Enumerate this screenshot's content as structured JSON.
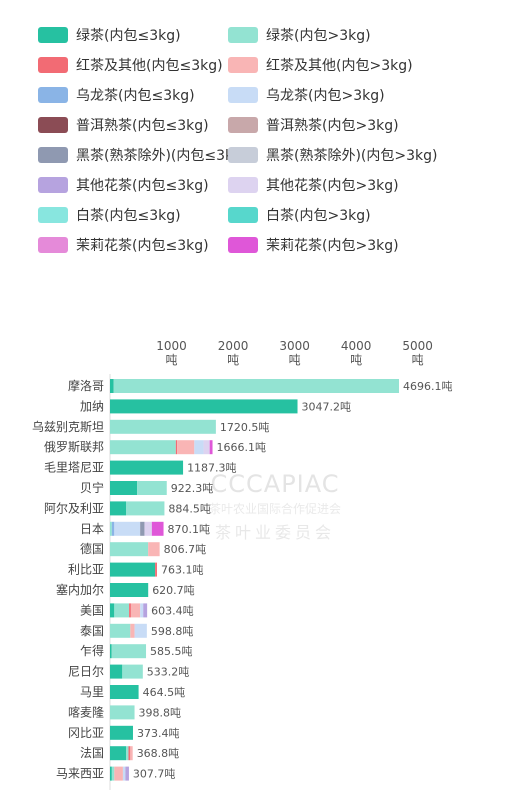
{
  "colors": {
    "green_small": "#26c1a1",
    "green_large": "#93e3d2",
    "red_small": "#f26b74",
    "red_large": "#f9b5b5",
    "oolong_small": "#8ab4e6",
    "oolong_large": "#c8dcf6",
    "puer_small": "#8b4c55",
    "puer_large": "#c8a8aa",
    "dark_small": "#8f99b1",
    "dark_large": "#c7cdd9",
    "flower_small": "#b6a3df",
    "flower_large": "#ddd3f0",
    "white_small": "#88e6df",
    "white_large": "#57d7cc",
    "jasmine_small": "#e58ad9",
    "jasmine_large": "#df57d8"
  },
  "legend": [
    {
      "label": "绿茶(内包≤3kg)",
      "color_key": "green_small"
    },
    {
      "label": "绿茶(内包>3kg)",
      "color_key": "green_large"
    },
    {
      "label": "红茶及其他(内包≤3kg)",
      "color_key": "red_small"
    },
    {
      "label": "红茶及其他(内包>3kg)",
      "color_key": "red_large"
    },
    {
      "label": "乌龙茶(内包≤3kg)",
      "color_key": "oolong_small"
    },
    {
      "label": "乌龙茶(内包>3kg)",
      "color_key": "oolong_large"
    },
    {
      "label": "普洱熟茶(内包≤3kg)",
      "color_key": "puer_small"
    },
    {
      "label": "普洱熟茶(内包>3kg)",
      "color_key": "puer_large"
    },
    {
      "label": "黑茶(熟茶除外)(内包≤3kg)",
      "color_key": "dark_small"
    },
    {
      "label": "黑茶(熟茶除外)(内包>3kg)",
      "color_key": "dark_large"
    },
    {
      "label": "其他花茶(内包≤3kg)",
      "color_key": "flower_small"
    },
    {
      "label": "其他花茶(内包>3kg)",
      "color_key": "flower_large"
    },
    {
      "label": "白茶(内包≤3kg)",
      "color_key": "white_small"
    },
    {
      "label": "白茶(内包>3kg)",
      "color_key": "white_large"
    },
    {
      "label": "茉莉花茶(内包≤3kg)",
      "color_key": "jasmine_small"
    },
    {
      "label": "茉莉花茶(内包>3kg)",
      "color_key": "jasmine_large"
    }
  ],
  "watermark": {
    "en": "CCCAPIAC",
    "cn": "茶叶农业国际合作促进会",
    "cn2": "茶叶业委员会"
  },
  "chart_data": {
    "type": "bar",
    "orientation": "horizontal",
    "stacked": true,
    "unit": "吨",
    "xlim": [
      0,
      5200
    ],
    "ticks": [
      {
        "value": 1000,
        "num": "1000",
        "unit": "吨"
      },
      {
        "value": 2000,
        "num": "2000",
        "unit": "吨"
      },
      {
        "value": 3000,
        "num": "3000",
        "unit": "吨"
      },
      {
        "value": 4000,
        "num": "4000",
        "unit": "吨"
      },
      {
        "value": 5000,
        "num": "5000",
        "unit": "吨"
      }
    ],
    "series_keys": [
      "green_small",
      "green_large",
      "red_small",
      "red_large",
      "oolong_small",
      "oolong_large",
      "puer_small",
      "puer_large",
      "dark_small",
      "dark_large",
      "flower_small",
      "flower_large",
      "white_small",
      "white_large",
      "jasmine_small",
      "jasmine_large"
    ],
    "categories": [
      {
        "name": "摩洛哥",
        "total_label": "4696.1吨",
        "segments": {
          "green_small": 60,
          "green_large": 4636.1
        }
      },
      {
        "name": "加纳",
        "total_label": "3047.2吨",
        "segments": {
          "green_small": 3047.2
        }
      },
      {
        "name": "乌兹别克斯坦",
        "total_label": "1720.5吨",
        "segments": {
          "green_large": 1720.5
        }
      },
      {
        "name": "俄罗斯联邦",
        "total_label": "1666.1吨",
        "segments": {
          "green_large": 1070,
          "red_large": 280,
          "oolong_large": 150,
          "flower_large": 100,
          "red_small": 20,
          "jasmine_large": 46.1
        }
      },
      {
        "name": "毛里塔尼亚",
        "total_label": "1187.3吨",
        "segments": {
          "green_small": 1187.3
        }
      },
      {
        "name": "贝宁",
        "total_label": "922.3吨",
        "segments": {
          "green_small": 440,
          "green_large": 482.3
        }
      },
      {
        "name": "阿尔及利亚",
        "total_label": "884.5吨",
        "segments": {
          "green_small": 260,
          "green_large": 624.5
        }
      },
      {
        "name": "日本",
        "total_label": "870.1吨",
        "segments": {
          "dark_small": 70,
          "oolong_small": 40,
          "green_large": 30,
          "oolong_large": 420,
          "flower_large": 120,
          "jasmine_large": 190.1
        }
      },
      {
        "name": "德国",
        "total_label": "806.7吨",
        "segments": {
          "green_large": 620,
          "red_large": 186.7
        }
      },
      {
        "name": "利比亚",
        "total_label": "763.1吨",
        "segments": {
          "green_small": 733.1,
          "red_small": 30
        }
      },
      {
        "name": "塞内加尔",
        "total_label": "620.7吨",
        "segments": {
          "green_small": 620.7
        }
      },
      {
        "name": "美国",
        "total_label": "603.4吨",
        "segments": {
          "green_small": 70,
          "green_large": 240,
          "red_small": 30,
          "red_large": 150,
          "oolong_large": 50,
          "flower_small": 63.4
        }
      },
      {
        "name": "泰国",
        "total_label": "598.8吨",
        "segments": {
          "green_large": 330,
          "red_large": 70,
          "oolong_large": 198.8
        }
      },
      {
        "name": "乍得",
        "total_label": "585.5吨",
        "segments": {
          "green_small": 25,
          "green_large": 560.5
        }
      },
      {
        "name": "尼日尔",
        "total_label": "533.2吨",
        "segments": {
          "green_small": 200,
          "green_large": 333.2
        }
      },
      {
        "name": "马里",
        "total_label": "464.5吨",
        "segments": {
          "green_small": 464.5
        }
      },
      {
        "name": "喀麦隆",
        "total_label": "398.8吨",
        "segments": {
          "green_large": 398.8
        }
      },
      {
        "name": "冈比亚",
        "total_label": "373.4吨",
        "segments": {
          "green_small": 373.4
        }
      },
      {
        "name": "法国",
        "total_label": "368.8吨",
        "segments": {
          "green_small": 260,
          "green_large": 40,
          "red_small": 30,
          "red_large": 38.8
        }
      },
      {
        "name": "马来西亚",
        "total_label": "307.7吨",
        "segments": {
          "green_small": 30,
          "green_large": 40,
          "red_large": 140,
          "oolong_large": 40,
          "flower_small": 57.7
        }
      }
    ]
  }
}
